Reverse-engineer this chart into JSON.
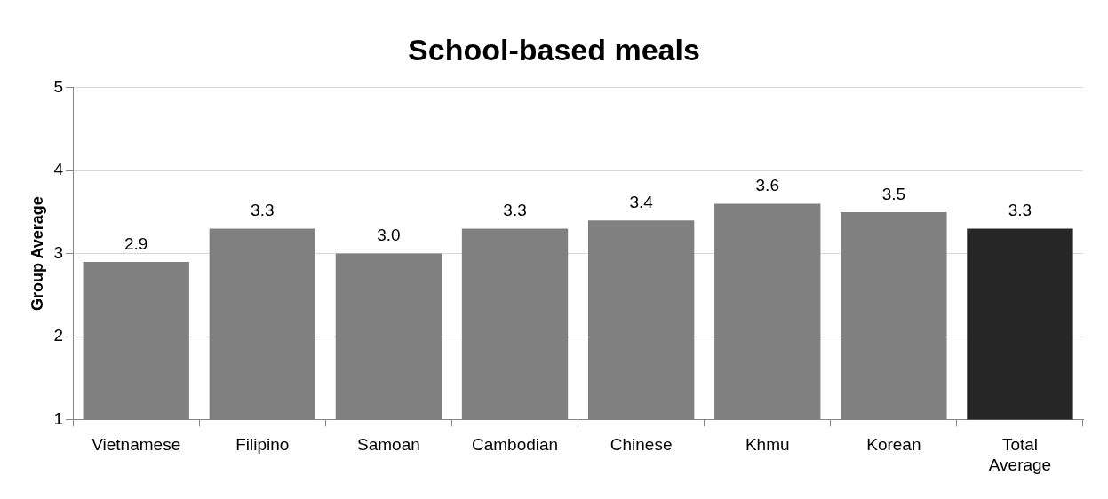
{
  "chart_data": {
    "type": "bar",
    "title": "School-based meals",
    "ylabel": "Group Average",
    "categories": [
      "Vietnamese",
      "Filipino",
      "Samoan",
      "Cambodian",
      "Chinese",
      "Khmu",
      "Korean",
      "Total Average"
    ],
    "values": [
      2.9,
      3.3,
      3.0,
      3.3,
      3.4,
      3.6,
      3.5,
      3.3
    ],
    "value_labels": [
      "2.9",
      "3.3",
      "3.0",
      "3.3",
      "3.4",
      "3.6",
      "3.5",
      "3.3"
    ],
    "colors": [
      "#808080",
      "#808080",
      "#808080",
      "#808080",
      "#808080",
      "#808080",
      "#808080",
      "#262626"
    ],
    "ylim": [
      1,
      5
    ],
    "yticks": [
      1,
      2,
      3,
      4,
      5
    ],
    "grid": "y",
    "legend": false
  }
}
